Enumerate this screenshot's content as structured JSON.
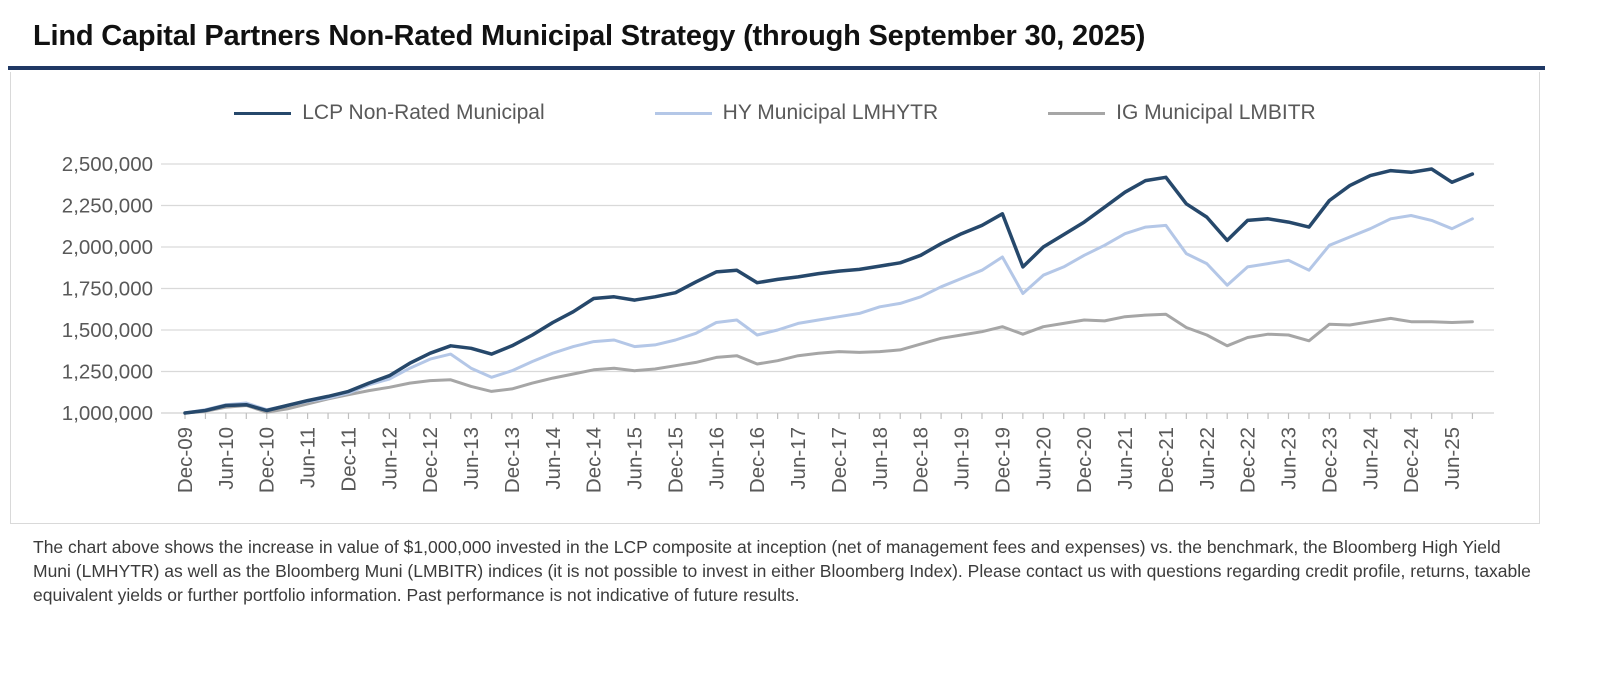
{
  "title": "Lind Capital Partners Non-Rated Municipal Strategy (through September 30, 2025)",
  "footnote": "The chart above shows the increase in value of $1,000,000 invested in the LCP composite at inception (net of management fees and expenses) vs. the benchmark, the Bloomberg High Yield Muni (LMHYTR) as well as the Bloomberg Muni (LMBITR) indices (it is not possible to invest in either Bloomberg Index).  Please contact us with questions regarding credit profile, returns, taxable equivalent yields or further portfolio information. Past performance is not indicative of future results.",
  "colors": {
    "lcp_navy": "#26486b",
    "hy_light_blue": "#b4c7e7",
    "ig_gray": "#a6a6a6",
    "axis_text": "#595959",
    "gridline": "#d9d9d9",
    "tick": "#bfbfbf",
    "title_rule": "#1f3864"
  },
  "chart_data": {
    "type": "line",
    "title": "",
    "xlabel": "",
    "ylabel": "",
    "ylim": [
      1000000,
      2500000
    ],
    "ytick_step": 250000,
    "ytick_labels": [
      "1,000,000",
      "1,250,000",
      "1,500,000",
      "1,750,000",
      "2,000,000",
      "2,250,000",
      "2,500,000"
    ],
    "x_tick_labels": [
      "Dec-09",
      "Jun-10",
      "Dec-10",
      "Jun-11",
      "Dec-11",
      "Jun-12",
      "Dec-12",
      "Jun-13",
      "Dec-13",
      "Jun-14",
      "Dec-14",
      "Jun-15",
      "Dec-15",
      "Jun-16",
      "Dec-16",
      "Jun-17",
      "Dec-17",
      "Jun-18",
      "Dec-18",
      "Jun-19",
      "Dec-19",
      "Jun-20",
      "Dec-20",
      "Jun-21",
      "Dec-21",
      "Jun-22",
      "Dec-22",
      "Jun-23",
      "Dec-23",
      "Jun-24",
      "Dec-24",
      "Jun-25"
    ],
    "x_tick_interval_months": 6,
    "minor_tick_interval_months": 3,
    "x_total_months": 189,
    "grid": "horizontal",
    "legend_position": "top",
    "categories": [
      "Dec-09",
      "Mar-10",
      "Jun-10",
      "Sep-10",
      "Dec-10",
      "Mar-11",
      "Jun-11",
      "Sep-11",
      "Dec-11",
      "Mar-12",
      "Jun-12",
      "Sep-12",
      "Dec-12",
      "Mar-13",
      "Jun-13",
      "Sep-13",
      "Dec-13",
      "Mar-14",
      "Jun-14",
      "Sep-14",
      "Dec-14",
      "Mar-15",
      "Jun-15",
      "Sep-15",
      "Dec-15",
      "Mar-16",
      "Jun-16",
      "Sep-16",
      "Dec-16",
      "Mar-17",
      "Jun-17",
      "Sep-17",
      "Dec-17",
      "Mar-18",
      "Jun-18",
      "Sep-18",
      "Dec-18",
      "Mar-19",
      "Jun-19",
      "Sep-19",
      "Dec-19",
      "Mar-20",
      "Jun-20",
      "Sep-20",
      "Dec-20",
      "Mar-21",
      "Jun-21",
      "Sep-21",
      "Dec-21",
      "Mar-22",
      "Jun-22",
      "Sep-22",
      "Dec-22",
      "Mar-23",
      "Jun-23",
      "Sep-23",
      "Dec-23",
      "Mar-24",
      "Jun-24",
      "Sep-24",
      "Dec-24",
      "Mar-25",
      "Jun-25",
      "Sep-25"
    ],
    "series": [
      {
        "name": "IG Municipal LMBITR",
        "color_key": "ig_gray",
        "stroke_width": 3,
        "values": [
          1000000,
          1010000,
          1035000,
          1045000,
          1005000,
          1025000,
          1055000,
          1085000,
          1110000,
          1135000,
          1155000,
          1180000,
          1195000,
          1200000,
          1160000,
          1130000,
          1145000,
          1180000,
          1210000,
          1235000,
          1260000,
          1270000,
          1255000,
          1265000,
          1285000,
          1305000,
          1335000,
          1345000,
          1295000,
          1315000,
          1345000,
          1360000,
          1370000,
          1365000,
          1370000,
          1380000,
          1415000,
          1450000,
          1470000,
          1490000,
          1520000,
          1475000,
          1520000,
          1540000,
          1560000,
          1555000,
          1580000,
          1590000,
          1595000,
          1515000,
          1470000,
          1405000,
          1455000,
          1475000,
          1470000,
          1435000,
          1535000,
          1530000,
          1550000,
          1570000,
          1550000,
          1550000,
          1545000,
          1550000
        ]
      },
      {
        "name": "HY Municipal LMHYTR",
        "color_key": "hy_light_blue",
        "stroke_width": 3,
        "values": [
          1000000,
          1020000,
          1050000,
          1060000,
          1020000,
          1045000,
          1070000,
          1090000,
          1120000,
          1170000,
          1205000,
          1270000,
          1325000,
          1355000,
          1270000,
          1215000,
          1255000,
          1310000,
          1360000,
          1400000,
          1430000,
          1440000,
          1400000,
          1410000,
          1440000,
          1480000,
          1545000,
          1560000,
          1470000,
          1500000,
          1540000,
          1560000,
          1580000,
          1600000,
          1640000,
          1660000,
          1700000,
          1760000,
          1810000,
          1860000,
          1940000,
          1720000,
          1830000,
          1880000,
          1950000,
          2010000,
          2080000,
          2120000,
          2130000,
          1960000,
          1900000,
          1770000,
          1880000,
          1900000,
          1920000,
          1860000,
          2010000,
          2060000,
          2110000,
          2170000,
          2190000,
          2160000,
          2110000,
          2170000
        ]
      },
      {
        "name": "LCP Non-Rated Municipal",
        "color_key": "lcp_navy",
        "stroke_width": 3.5,
        "values": [
          1000000,
          1015000,
          1045000,
          1050000,
          1015000,
          1045000,
          1075000,
          1100000,
          1130000,
          1180000,
          1225000,
          1300000,
          1360000,
          1405000,
          1390000,
          1355000,
          1405000,
          1470000,
          1545000,
          1610000,
          1690000,
          1700000,
          1680000,
          1700000,
          1725000,
          1790000,
          1850000,
          1860000,
          1785000,
          1805000,
          1820000,
          1840000,
          1855000,
          1865000,
          1885000,
          1905000,
          1950000,
          2020000,
          2080000,
          2130000,
          2200000,
          1880000,
          2000000,
          2075000,
          2150000,
          2240000,
          2330000,
          2400000,
          2420000,
          2260000,
          2180000,
          2040000,
          2160000,
          2170000,
          2150000,
          2120000,
          2280000,
          2370000,
          2430000,
          2460000,
          2450000,
          2470000,
          2390000,
          2440000
        ]
      }
    ],
    "legend_order": [
      2,
      1,
      0
    ]
  }
}
